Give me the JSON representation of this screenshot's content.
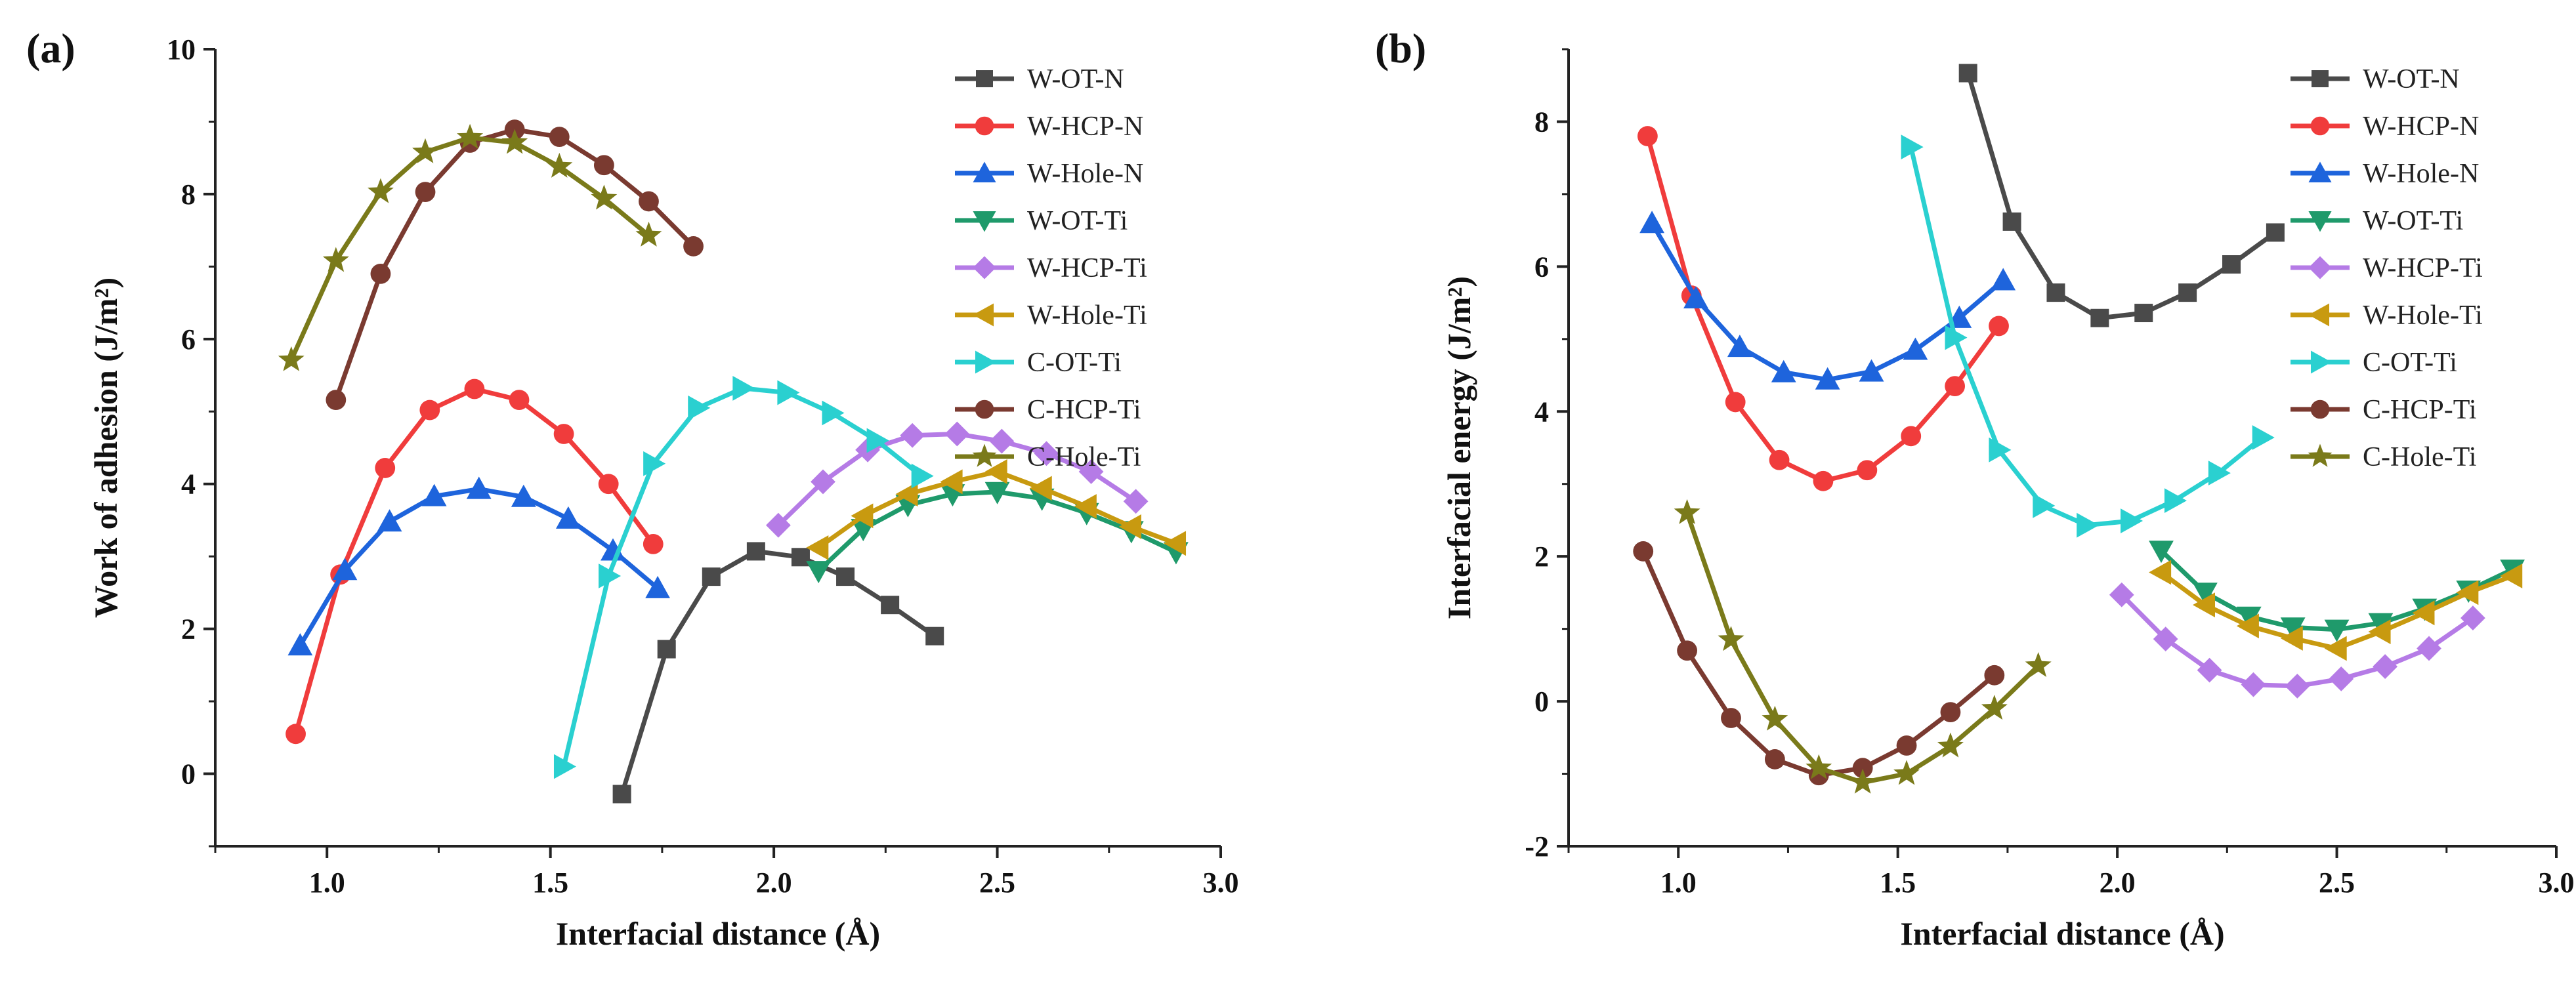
{
  "chart_data": [
    {
      "panel": "(a)",
      "type": "line",
      "xlabel": "Interfacial distance (Å)",
      "ylabel": "Work of adhesion (J/m²)",
      "xlim": [
        0.75,
        3.0
      ],
      "ylim": [
        -1.0,
        10.0
      ],
      "xticks": [
        1.0,
        1.5,
        2.0,
        2.5,
        3.0
      ],
      "xtick_labels": [
        "1.0",
        "1.5",
        "2.0",
        "2.5",
        "3.0"
      ],
      "yticks": [
        0,
        2,
        4,
        6,
        8,
        10
      ],
      "ytick_labels": [
        "0",
        "2",
        "4",
        "6",
        "8",
        "10"
      ],
      "grid": false,
      "legend_position": "top-right",
      "series": [
        {
          "name": "W-OT-N",
          "color": "#4a4a4a",
          "marker": "square",
          "x": [
            1.66,
            1.76,
            1.86,
            1.96,
            2.06,
            2.16,
            2.26,
            2.36
          ],
          "y": [
            -0.28,
            1.72,
            2.72,
            3.07,
            2.99,
            2.72,
            2.33,
            1.9
          ]
        },
        {
          "name": "W-HCP-N",
          "color": "#f03c3c",
          "marker": "circle",
          "x": [
            0.93,
            1.03,
            1.13,
            1.23,
            1.33,
            1.43,
            1.53,
            1.63,
            1.73
          ],
          "y": [
            0.55,
            2.75,
            4.22,
            5.02,
            5.31,
            5.16,
            4.69,
            4.0,
            3.17
          ]
        },
        {
          "name": "W-Hole-N",
          "color": "#1e64dc",
          "marker": "triangle-up",
          "x": [
            0.94,
            1.04,
            1.14,
            1.24,
            1.34,
            1.44,
            1.54,
            1.64,
            1.74
          ],
          "y": [
            1.77,
            2.81,
            3.48,
            3.83,
            3.93,
            3.82,
            3.52,
            3.08,
            2.56
          ]
        },
        {
          "name": "W-OT-Ti",
          "color": "#1f9a6b",
          "marker": "triangle-down",
          "x": [
            2.1,
            2.2,
            2.3,
            2.4,
            2.5,
            2.6,
            2.7,
            2.8,
            2.9
          ],
          "y": [
            2.8,
            3.38,
            3.71,
            3.86,
            3.89,
            3.8,
            3.6,
            3.35,
            3.06
          ]
        },
        {
          "name": "W-HCP-Ti",
          "color": "#b57be6",
          "marker": "diamond",
          "x": [
            2.01,
            2.11,
            2.21,
            2.31,
            2.41,
            2.51,
            2.61,
            2.71,
            2.81
          ],
          "y": [
            3.43,
            4.03,
            4.47,
            4.67,
            4.69,
            4.59,
            4.42,
            4.17,
            3.76
          ]
        },
        {
          "name": "W-Hole-Ti",
          "color": "#c89a10",
          "marker": "triangle-left",
          "x": [
            2.1,
            2.2,
            2.3,
            2.4,
            2.5,
            2.6,
            2.7,
            2.8,
            2.9
          ],
          "y": [
            3.12,
            3.56,
            3.86,
            4.03,
            4.17,
            3.94,
            3.69,
            3.41,
            3.18
          ]
        },
        {
          "name": "C-OT-Ti",
          "color": "#2ad0d0",
          "marker": "triangle-right",
          "x": [
            1.53,
            1.63,
            1.73,
            1.83,
            1.93,
            2.03,
            2.13,
            2.23,
            2.33
          ],
          "y": [
            0.1,
            2.73,
            4.28,
            5.05,
            5.32,
            5.26,
            4.98,
            4.6,
            4.11
          ]
        },
        {
          "name": "C-HCP-Ti",
          "color": "#7a3a30",
          "marker": "circle",
          "x": [
            1.02,
            1.12,
            1.22,
            1.32,
            1.42,
            1.52,
            1.62,
            1.72,
            1.82
          ],
          "y": [
            5.16,
            6.9,
            8.03,
            8.71,
            8.89,
            8.79,
            8.4,
            7.9,
            7.28
          ]
        },
        {
          "name": "C-Hole-Ti",
          "color": "#7a7a1a",
          "marker": "star",
          "x": [
            0.92,
            1.02,
            1.12,
            1.22,
            1.32,
            1.42,
            1.52,
            1.62,
            1.72
          ],
          "y": [
            5.71,
            7.08,
            8.03,
            8.58,
            8.78,
            8.71,
            8.38,
            7.94,
            7.43
          ]
        }
      ]
    },
    {
      "panel": "(b)",
      "type": "line",
      "xlabel": "Interfacial distance (Å)",
      "ylabel": "Interfacial energy (J/m²)",
      "xlim": [
        0.75,
        3.0
      ],
      "ylim": [
        -2.0,
        9.0
      ],
      "xticks": [
        1.0,
        1.5,
        2.0,
        2.5,
        3.0
      ],
      "xtick_labels": [
        "1.0",
        "1.5",
        "2.0",
        "2.5",
        "3.0"
      ],
      "yticks": [
        -2,
        0,
        2,
        4,
        6,
        8
      ],
      "ytick_labels": [
        "-2",
        "0",
        "2",
        "4",
        "6",
        "8"
      ],
      "grid": false,
      "legend_position": "top-right",
      "series": [
        {
          "name": "W-OT-N",
          "color": "#4a4a4a",
          "marker": "square",
          "x": [
            1.66,
            1.76,
            1.86,
            1.96,
            2.06,
            2.16,
            2.26,
            2.36
          ],
          "y": [
            8.67,
            6.62,
            5.64,
            5.29,
            5.36,
            5.64,
            6.03,
            6.47
          ]
        },
        {
          "name": "W-HCP-N",
          "color": "#f03c3c",
          "marker": "circle",
          "x": [
            0.93,
            1.03,
            1.13,
            1.23,
            1.33,
            1.43,
            1.53,
            1.63,
            1.73
          ],
          "y": [
            7.8,
            5.6,
            4.13,
            3.33,
            3.04,
            3.19,
            3.66,
            4.35,
            5.18
          ]
        },
        {
          "name": "W-Hole-N",
          "color": "#1e64dc",
          "marker": "triangle-up",
          "x": [
            0.94,
            1.04,
            1.14,
            1.24,
            1.34,
            1.44,
            1.54,
            1.64,
            1.74
          ],
          "y": [
            6.6,
            5.56,
            4.89,
            4.54,
            4.44,
            4.55,
            4.85,
            5.29,
            5.81
          ]
        },
        {
          "name": "W-OT-Ti",
          "color": "#1f9a6b",
          "marker": "triangle-down",
          "x": [
            2.1,
            2.2,
            2.3,
            2.4,
            2.5,
            2.6,
            2.7,
            2.8,
            2.9
          ],
          "y": [
            2.08,
            1.5,
            1.17,
            1.02,
            0.99,
            1.08,
            1.28,
            1.53,
            1.82
          ]
        },
        {
          "name": "W-HCP-Ti",
          "color": "#b57be6",
          "marker": "diamond",
          "x": [
            2.01,
            2.11,
            2.21,
            2.31,
            2.41,
            2.51,
            2.61,
            2.71,
            2.81
          ],
          "y": [
            1.47,
            0.86,
            0.43,
            0.23,
            0.21,
            0.31,
            0.48,
            0.73,
            1.15
          ]
        },
        {
          "name": "W-Hole-Ti",
          "color": "#c89a10",
          "marker": "triangle-left",
          "x": [
            2.1,
            2.2,
            2.3,
            2.4,
            2.5,
            2.6,
            2.7,
            2.8,
            2.9
          ],
          "y": [
            1.78,
            1.33,
            1.04,
            0.87,
            0.73,
            0.96,
            1.22,
            1.5,
            1.73
          ]
        },
        {
          "name": "C-OT-Ti",
          "color": "#2ad0d0",
          "marker": "triangle-right",
          "x": [
            1.53,
            1.63,
            1.73,
            1.83,
            1.93,
            2.03,
            2.13,
            2.23,
            2.33
          ],
          "y": [
            7.65,
            5.02,
            3.47,
            2.7,
            2.43,
            2.49,
            2.77,
            3.15,
            3.64
          ]
        },
        {
          "name": "C-HCP-Ti",
          "color": "#7a3a30",
          "marker": "circle",
          "x": [
            0.92,
            1.02,
            1.12,
            1.22,
            1.32,
            1.42,
            1.52,
            1.62,
            1.72
          ],
          "y": [
            2.07,
            0.7,
            -0.23,
            -0.8,
            -1.02,
            -0.92,
            -0.61,
            -0.15,
            0.36
          ]
        },
        {
          "name": "C-Hole-Ti",
          "color": "#7a7a1a",
          "marker": "star",
          "x": [
            1.02,
            1.12,
            1.22,
            1.32,
            1.42,
            1.52,
            1.62,
            1.72,
            1.82
          ],
          "y": [
            2.6,
            0.85,
            -0.25,
            -0.92,
            -1.12,
            -1.0,
            -0.62,
            -0.1,
            0.49
          ]
        }
      ]
    }
  ]
}
